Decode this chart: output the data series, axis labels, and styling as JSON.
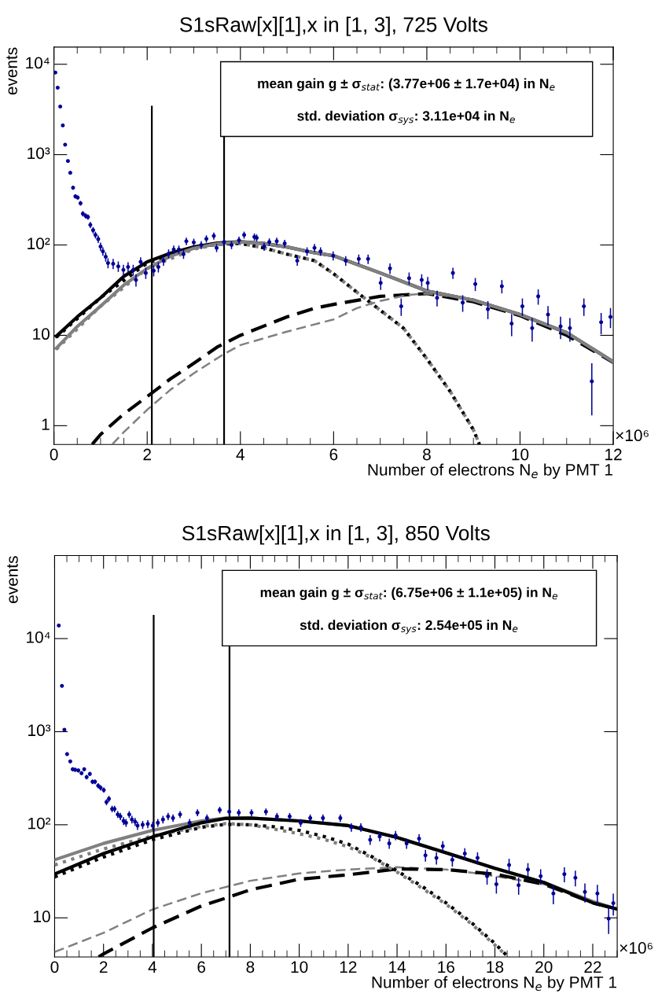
{
  "chart_data": [
    {
      "type": "scatter",
      "title": "S1sRaw[x][1],x in [1, 3], 725 Volts",
      "xlabel": "Number of electrons N$_{e}$ by PMT 1",
      "ylabel": "events",
      "annotations": [
        "mean gain g ± σ$_{stat}$: (3.77e+06 ± 1.7e+04) in N$_{e}$",
        "std. deviation σ$_{sys}$: 3.11e+04 in N$_{e}$",
        "×10⁶"
      ],
      "log": "y",
      "xlim": [
        0,
        12
      ],
      "xticks": [
        0,
        2,
        4,
        6,
        8,
        10,
        12
      ],
      "ylim": [
        0.62,
        15500
      ],
      "yticks": [
        1,
        10,
        {
          "value": 100,
          "label": "10²"
        },
        {
          "value": 1000,
          "label": "10³"
        },
        {
          "value": 10000,
          "label": "10⁴"
        }
      ],
      "legend": false,
      "grid": false,
      "ref_lines": [
        {
          "axis": "x",
          "value": 2.1,
          "label": null,
          "color": "#000000"
        },
        {
          "axis": "x",
          "value": 3.65,
          "label": null,
          "color": "#000000"
        }
      ],
      "series": [
        {
          "color": "#000099",
          "marker": "circle",
          "x": [
            0.03,
            0.08,
            0.135,
            0.19,
            0.24,
            0.3,
            0.35,
            0.41,
            0.46,
            0.51,
            0.57,
            0.62,
            0.68,
            0.73,
            0.78,
            0.84,
            0.89,
            0.95,
            1.0,
            1.05,
            1.11,
            1.16,
            1.27,
            1.38,
            1.49,
            1.59,
            1.7,
            1.76,
            1.86,
            1.97,
            2.14,
            2.24,
            2.35,
            2.46,
            2.57,
            2.68,
            2.78,
            2.84,
            3.0,
            3.16,
            3.27,
            3.43,
            3.49,
            3.65,
            3.81,
            3.97,
            4.08,
            4.3,
            4.35,
            4.51,
            4.62,
            4.78,
            4.95,
            5.22,
            5.43,
            5.59,
            5.72,
            5.99,
            6.26,
            6.54,
            6.74,
            7.01,
            7.21,
            7.45,
            7.62,
            7.89,
            8.02,
            8.22,
            8.56,
            8.77,
            9.04,
            9.31,
            9.61,
            9.82,
            10.05,
            10.26,
            10.39,
            10.6,
            10.87,
            11.07,
            11.37,
            11.54,
            11.74,
            11.94
          ],
          "values": [
            8100,
            5500,
            3400,
            2100,
            1290,
            850,
            630,
            430,
            345,
            335,
            290,
            222,
            210,
            204,
            167,
            146,
            129,
            116,
            96,
            85,
            74,
            63,
            62,
            58,
            53,
            57,
            53,
            41,
            65,
            49,
            52,
            57,
            67,
            80,
            89,
            89,
            79,
            110,
            107,
            100,
            117,
            126,
            93,
            108,
            100,
            113,
            129,
            123,
            120,
            96,
            108,
            110,
            104,
            67,
            85,
            93,
            85,
            76,
            67,
            70,
            70,
            38,
            55,
            21,
            43,
            41,
            38,
            26,
            49,
            23,
            37,
            19.5,
            35,
            13.5,
            21,
            12,
            27,
            17,
            12.6,
            12,
            21,
            3.1,
            14,
            16
          ],
          "errors": [
            null,
            null,
            null,
            null,
            null,
            29,
            25,
            21,
            19,
            18,
            17,
            15,
            14.5,
            14,
            13,
            12,
            11,
            11,
            10,
            9,
            8.6,
            8,
            8,
            7.6,
            7.3,
            7.5,
            7.3,
            6.4,
            8,
            7,
            7.2,
            7.5,
            8.2,
            9,
            9.4,
            9.4,
            9,
            10.5,
            10.3,
            10,
            10.8,
            11.2,
            9.6,
            10.4,
            10,
            10.6,
            11.4,
            11,
            11,
            9.8,
            10.4,
            10.5,
            10.2,
            8.2,
            9.2,
            9.6,
            9.2,
            8.7,
            8.2,
            8.4,
            8.4,
            6.2,
            7.4,
            4.6,
            6.6,
            6.4,
            6.2,
            5.1,
            7,
            4.8,
            6.1,
            4.4,
            5.9,
            3.7,
            4.6,
            3.5,
            5.2,
            4.1,
            3.5,
            3.5,
            4.6,
            1.8,
            3.7,
            4
          ],
          "xerrors": [
            0.025,
            0.025,
            0.025,
            0.025,
            0.025,
            0.025,
            0.025,
            0.025,
            0.025,
            0.025,
            0.025,
            0.025,
            0.025,
            0.025,
            0.025,
            0.025,
            0.025,
            0.025,
            0.025,
            0.025,
            0.025,
            0.025,
            0.025,
            0.025,
            0.025,
            0.025,
            0.025,
            0.025,
            0.025,
            0.025,
            0.025,
            0.025,
            0.025,
            0.025,
            0.025,
            0.025,
            0.025,
            0.025,
            0.025,
            0.025,
            0.025,
            0.025,
            0.025,
            0.025,
            0.025,
            0.025,
            0.025,
            0.025,
            0.025,
            0.025,
            0.025,
            0.025,
            0.025,
            0.025,
            0.025,
            0.025,
            0.025,
            0.025,
            0.025,
            0.025,
            0.025,
            0.025,
            0.025,
            0.025,
            0.025,
            0.025,
            0.025,
            0.025,
            0.025,
            0.025,
            0.025,
            0.025,
            0.025,
            0.025,
            0.025,
            0.025,
            0.025,
            0.025,
            0.025,
            0.025,
            0.025,
            0.025,
            0.025,
            0.025
          ]
        },
        {
          "type": "line",
          "color": "#000000",
          "line_style": "solid",
          "x": [
            0.05,
            0.5,
            1,
            1.5,
            2,
            2.5,
            3,
            3.5,
            4,
            4.5,
            5,
            5.59,
            6,
            7,
            8,
            9,
            10,
            11,
            12
          ],
          "values": [
            9.8,
            16,
            26,
            45,
            65,
            81,
            95,
            105,
            109,
            104,
            95,
            82,
            76,
            49,
            31,
            24.5,
            17,
            10.7,
            5.1
          ]
        },
        {
          "type": "line",
          "color": "#808080",
          "line_style": "solid",
          "x": [
            0.05,
            0.5,
            1,
            1.5,
            2,
            2.5,
            3,
            3.5,
            4,
            4.5,
            5,
            5.59,
            6,
            7,
            8,
            9,
            10,
            11,
            12
          ],
          "values": [
            7.2,
            12.5,
            21,
            36,
            55,
            75,
            92,
            103,
            108,
            104,
            95,
            82,
            76,
            49,
            31,
            24.5,
            17,
            10.7,
            5.1
          ]
        },
        {
          "type": "line",
          "color": "#000000",
          "line_style": "dotted",
          "x": [
            0.05,
            1,
            2,
            3,
            3.5,
            4,
            4.5,
            5,
            5.59,
            6,
            6.5,
            7,
            7.5,
            8,
            8.5,
            9,
            9.13
          ],
          "values": [
            9.5,
            26,
            63,
            93,
            102,
            104,
            93,
            79,
            67,
            48,
            30,
            19,
            12,
            5.5,
            2.4,
            0.9,
            0.62
          ]
        },
        {
          "type": "line",
          "color": "#808080",
          "line_style": "dotted",
          "x": [
            0.05,
            1,
            2,
            3,
            3.5,
            4,
            4.5,
            5,
            5.59,
            6,
            6.5,
            7,
            7.5,
            8,
            8.5,
            9,
            9.13
          ],
          "values": [
            7,
            21,
            55,
            90,
            101,
            104,
            93,
            79,
            67,
            48,
            30,
            19,
            12,
            5.5,
            2.4,
            0.9,
            0.62
          ]
        },
        {
          "type": "line",
          "color": "#000000",
          "line_style": "dashed",
          "x": [
            0.82,
            1,
            1.5,
            2,
            2.5,
            3,
            3.5,
            4,
            5,
            5.6,
            6,
            7,
            8,
            9,
            10,
            11,
            12
          ],
          "values": [
            0.62,
            0.8,
            1.35,
            2.1,
            3.3,
            4.9,
            7.4,
            10,
            16,
            20,
            22,
            27,
            29,
            23.5,
            16.5,
            10,
            5
          ]
        },
        {
          "type": "line",
          "color": "#808080",
          "line_style": "dashed",
          "x": [
            1.25,
            1.5,
            2,
            2.5,
            3,
            3.6,
            4,
            5,
            6,
            6.5,
            7,
            7.6,
            8,
            9,
            10,
            11,
            12
          ],
          "values": [
            0.62,
            0.85,
            1.5,
            2.5,
            3.8,
            6,
            7.8,
            11,
            15,
            20,
            24,
            28,
            29,
            25,
            17,
            10.5,
            5.1
          ]
        }
      ]
    },
    {
      "type": "scatter",
      "title": "S1sRaw[x][1],x in [1, 3], 850 Volts",
      "xlabel": "Number of electrons N$_{e}$ by PMT 1",
      "ylabel": "events",
      "annotations": [
        "mean gain g ± σ$_{stat}$: (6.75e+06 ± 1.1e+05) in N$_{e}$",
        "std. deviation σ$_{sys}$: 2.54e+05 in N$_{e}$",
        "×10⁶"
      ],
      "log": "y",
      "xlim": [
        0,
        23
      ],
      "xticks": [
        0,
        2,
        4,
        6,
        8,
        10,
        12,
        14,
        16,
        18,
        20,
        22
      ],
      "ylim": [
        3.8,
        78000
      ],
      "yticks": [
        10,
        {
          "value": 100,
          "label": "10²"
        },
        {
          "value": 1000,
          "label": "10³"
        },
        {
          "value": 10000,
          "label": "10⁴"
        }
      ],
      "legend": false,
      "grid": false,
      "ref_lines": [
        {
          "axis": "x",
          "value": 4.05,
          "label": null,
          "color": "#000000"
        },
        {
          "axis": "x",
          "value": 7.15,
          "label": null,
          "color": "#000000"
        }
      ],
      "series": [
        {
          "color": "#000099",
          "marker": "circle",
          "x": [
            0.17,
            0.3,
            0.4,
            0.51,
            0.64,
            0.74,
            0.84,
            0.97,
            1.1,
            1.21,
            1.31,
            1.44,
            1.55,
            1.65,
            1.78,
            1.88,
            2.01,
            2.12,
            2.22,
            2.35,
            2.45,
            2.58,
            2.69,
            2.82,
            2.92,
            3.05,
            3.16,
            3.29,
            3.39,
            3.6,
            3.81,
            4.01,
            4.22,
            4.43,
            4.64,
            4.84,
            5.13,
            5.52,
            5.84,
            6.23,
            6.75,
            7.14,
            7.53,
            8.05,
            8.64,
            9.09,
            9.61,
            10.06,
            10.45,
            10.97,
            11.68,
            12.13,
            12.52,
            12.9,
            13.29,
            13.68,
            13.94,
            14.39,
            14.9,
            15.16,
            15.61,
            15.87,
            16.26,
            16.77,
            17.29,
            17.68,
            18.06,
            18.58,
            18.97,
            19.35,
            19.87,
            20.39,
            20.84,
            21.29,
            21.68,
            22.19,
            22.65,
            22.84
          ],
          "values": [
            13800,
            3100,
            1050,
            575,
            480,
            395,
            390,
            383,
            358,
            395,
            325,
            352,
            290,
            290,
            263,
            250,
            236,
            175,
            190,
            148,
            148,
            129,
            123,
            110,
            105,
            129,
            114,
            108,
            98,
            100,
            102,
            98,
            105,
            114,
            123,
            118,
            129,
            105,
            135,
            118,
            144,
            138,
            135,
            135,
            138,
            123,
            123,
            105,
            118,
            118,
            118,
            94,
            94,
            69,
            75,
            63,
            77,
            63,
            71,
            47,
            44,
            59,
            42,
            49,
            44,
            28,
            23,
            37,
            22.4,
            33,
            28,
            18.3,
            29.5,
            27,
            19,
            18.3,
            9.8,
            14.4
          ],
          "errors": [
            117,
            56,
            null,
            24,
            22,
            20,
            20,
            19.6,
            19,
            20,
            18,
            19,
            17,
            17,
            16,
            16,
            15,
            13,
            14,
            12,
            12,
            11,
            11,
            10.5,
            10.2,
            11,
            10.7,
            10.4,
            9.9,
            10,
            10,
            9.9,
            10.2,
            10.7,
            11,
            10.9,
            11,
            10.2,
            11.6,
            10.9,
            12,
            11.7,
            11.6,
            11.6,
            11.7,
            11,
            11,
            10.2,
            10.9,
            10.9,
            10.9,
            9.7,
            9.7,
            8.3,
            8.7,
            7.9,
            8.8,
            7.9,
            8.4,
            6.9,
            6.6,
            7.7,
            6.5,
            7,
            6.6,
            5.3,
            4.8,
            6.1,
            4.7,
            5.7,
            5.3,
            4.3,
            5.4,
            5.2,
            4.4,
            4.3,
            3.1,
            3.8
          ],
          "xerrors": [
            0.05,
            0.05,
            0.05,
            0.05,
            0.05,
            0.05,
            0.05,
            0.05,
            0.05,
            0.05,
            0.05,
            0.05,
            0.05,
            0.05,
            0.05,
            0.05,
            0.05,
            0.05,
            0.05,
            0.05,
            0.05,
            0.05,
            0.05,
            0.05,
            0.05,
            0.05,
            0.05,
            0.05,
            0.05,
            0.05,
            0.05,
            0.05,
            0.05,
            0.05,
            0.05,
            0.05,
            0.05,
            0.05,
            0.05,
            0.05,
            0.05,
            0.05,
            0.05,
            0.05,
            0.05,
            0.05,
            0.05,
            0.05,
            0.05,
            0.05,
            0.05,
            0.05,
            0.05,
            0.05,
            0.05,
            0.05,
            0.05,
            0.05,
            0.05,
            0.05,
            0.05,
            0.05,
            0.05,
            0.05,
            0.05,
            0.05,
            0.05,
            0.05,
            0.05,
            0.05,
            0.05,
            0.05,
            0.05,
            0.05,
            0.05,
            0.05,
            0.05,
            0.05
          ]
        },
        {
          "type": "line",
          "color": "#808080",
          "line_style": "solid",
          "x": [
            0,
            2,
            4,
            6,
            7,
            8,
            10,
            12,
            14,
            16,
            18,
            20,
            22,
            23
          ],
          "values": [
            42,
            63,
            87,
            110,
            118,
            118,
            110,
            98,
            73,
            50,
            34,
            24,
            15,
            12.4
          ]
        },
        {
          "type": "line",
          "color": "#000000",
          "line_style": "solid",
          "x": [
            0,
            2,
            4,
            6,
            7,
            8,
            10,
            12,
            14,
            16,
            18,
            20,
            22,
            23
          ],
          "values": [
            29.5,
            49,
            74,
            105,
            117,
            118,
            110,
            98,
            73,
            50,
            34,
            24,
            14.5,
            12.4
          ]
        },
        {
          "type": "line",
          "color": "#000000",
          "line_style": "dotted",
          "x": [
            0,
            2,
            4,
            6,
            7,
            8,
            9,
            10,
            11,
            12,
            13,
            14,
            15,
            16,
            17,
            18,
            18.5
          ],
          "values": [
            27.5,
            45,
            69,
            94,
            101,
            100,
            95,
            87,
            75,
            62,
            45,
            32,
            22,
            14.5,
            9.1,
            5.3,
            3.9
          ]
        },
        {
          "type": "line",
          "color": "#808080",
          "line_style": "dotted",
          "x": [
            0,
            2,
            4,
            6,
            7,
            8,
            10,
            11,
            12,
            13,
            14,
            15,
            16,
            17,
            18,
            18.5
          ],
          "values": [
            37,
            55,
            76,
            96,
            103,
            100,
            80,
            70,
            58,
            44,
            31,
            21,
            14,
            8.8,
            5.1,
            3.9
          ]
        },
        {
          "type": "line",
          "color": "#808080",
          "line_style": "dashed",
          "x": [
            0,
            2,
            4,
            6,
            8,
            10,
            12,
            14,
            16,
            17.5,
            20,
            22,
            23
          ],
          "values": [
            4.3,
            6.9,
            12.3,
            18.4,
            25,
            30,
            33,
            35,
            33,
            29.5,
            23,
            15,
            12.4
          ]
        },
        {
          "type": "line",
          "color": "#000000",
          "line_style": "dashed",
          "x": [
            1.8,
            2,
            4,
            6,
            7,
            8,
            10,
            12,
            14,
            16,
            18,
            20,
            22,
            23
          ],
          "values": [
            3.8,
            4.1,
            7.8,
            13.4,
            16.3,
            20,
            26,
            29,
            33.5,
            33,
            29.5,
            23,
            14.5,
            12.4
          ]
        }
      ]
    }
  ]
}
